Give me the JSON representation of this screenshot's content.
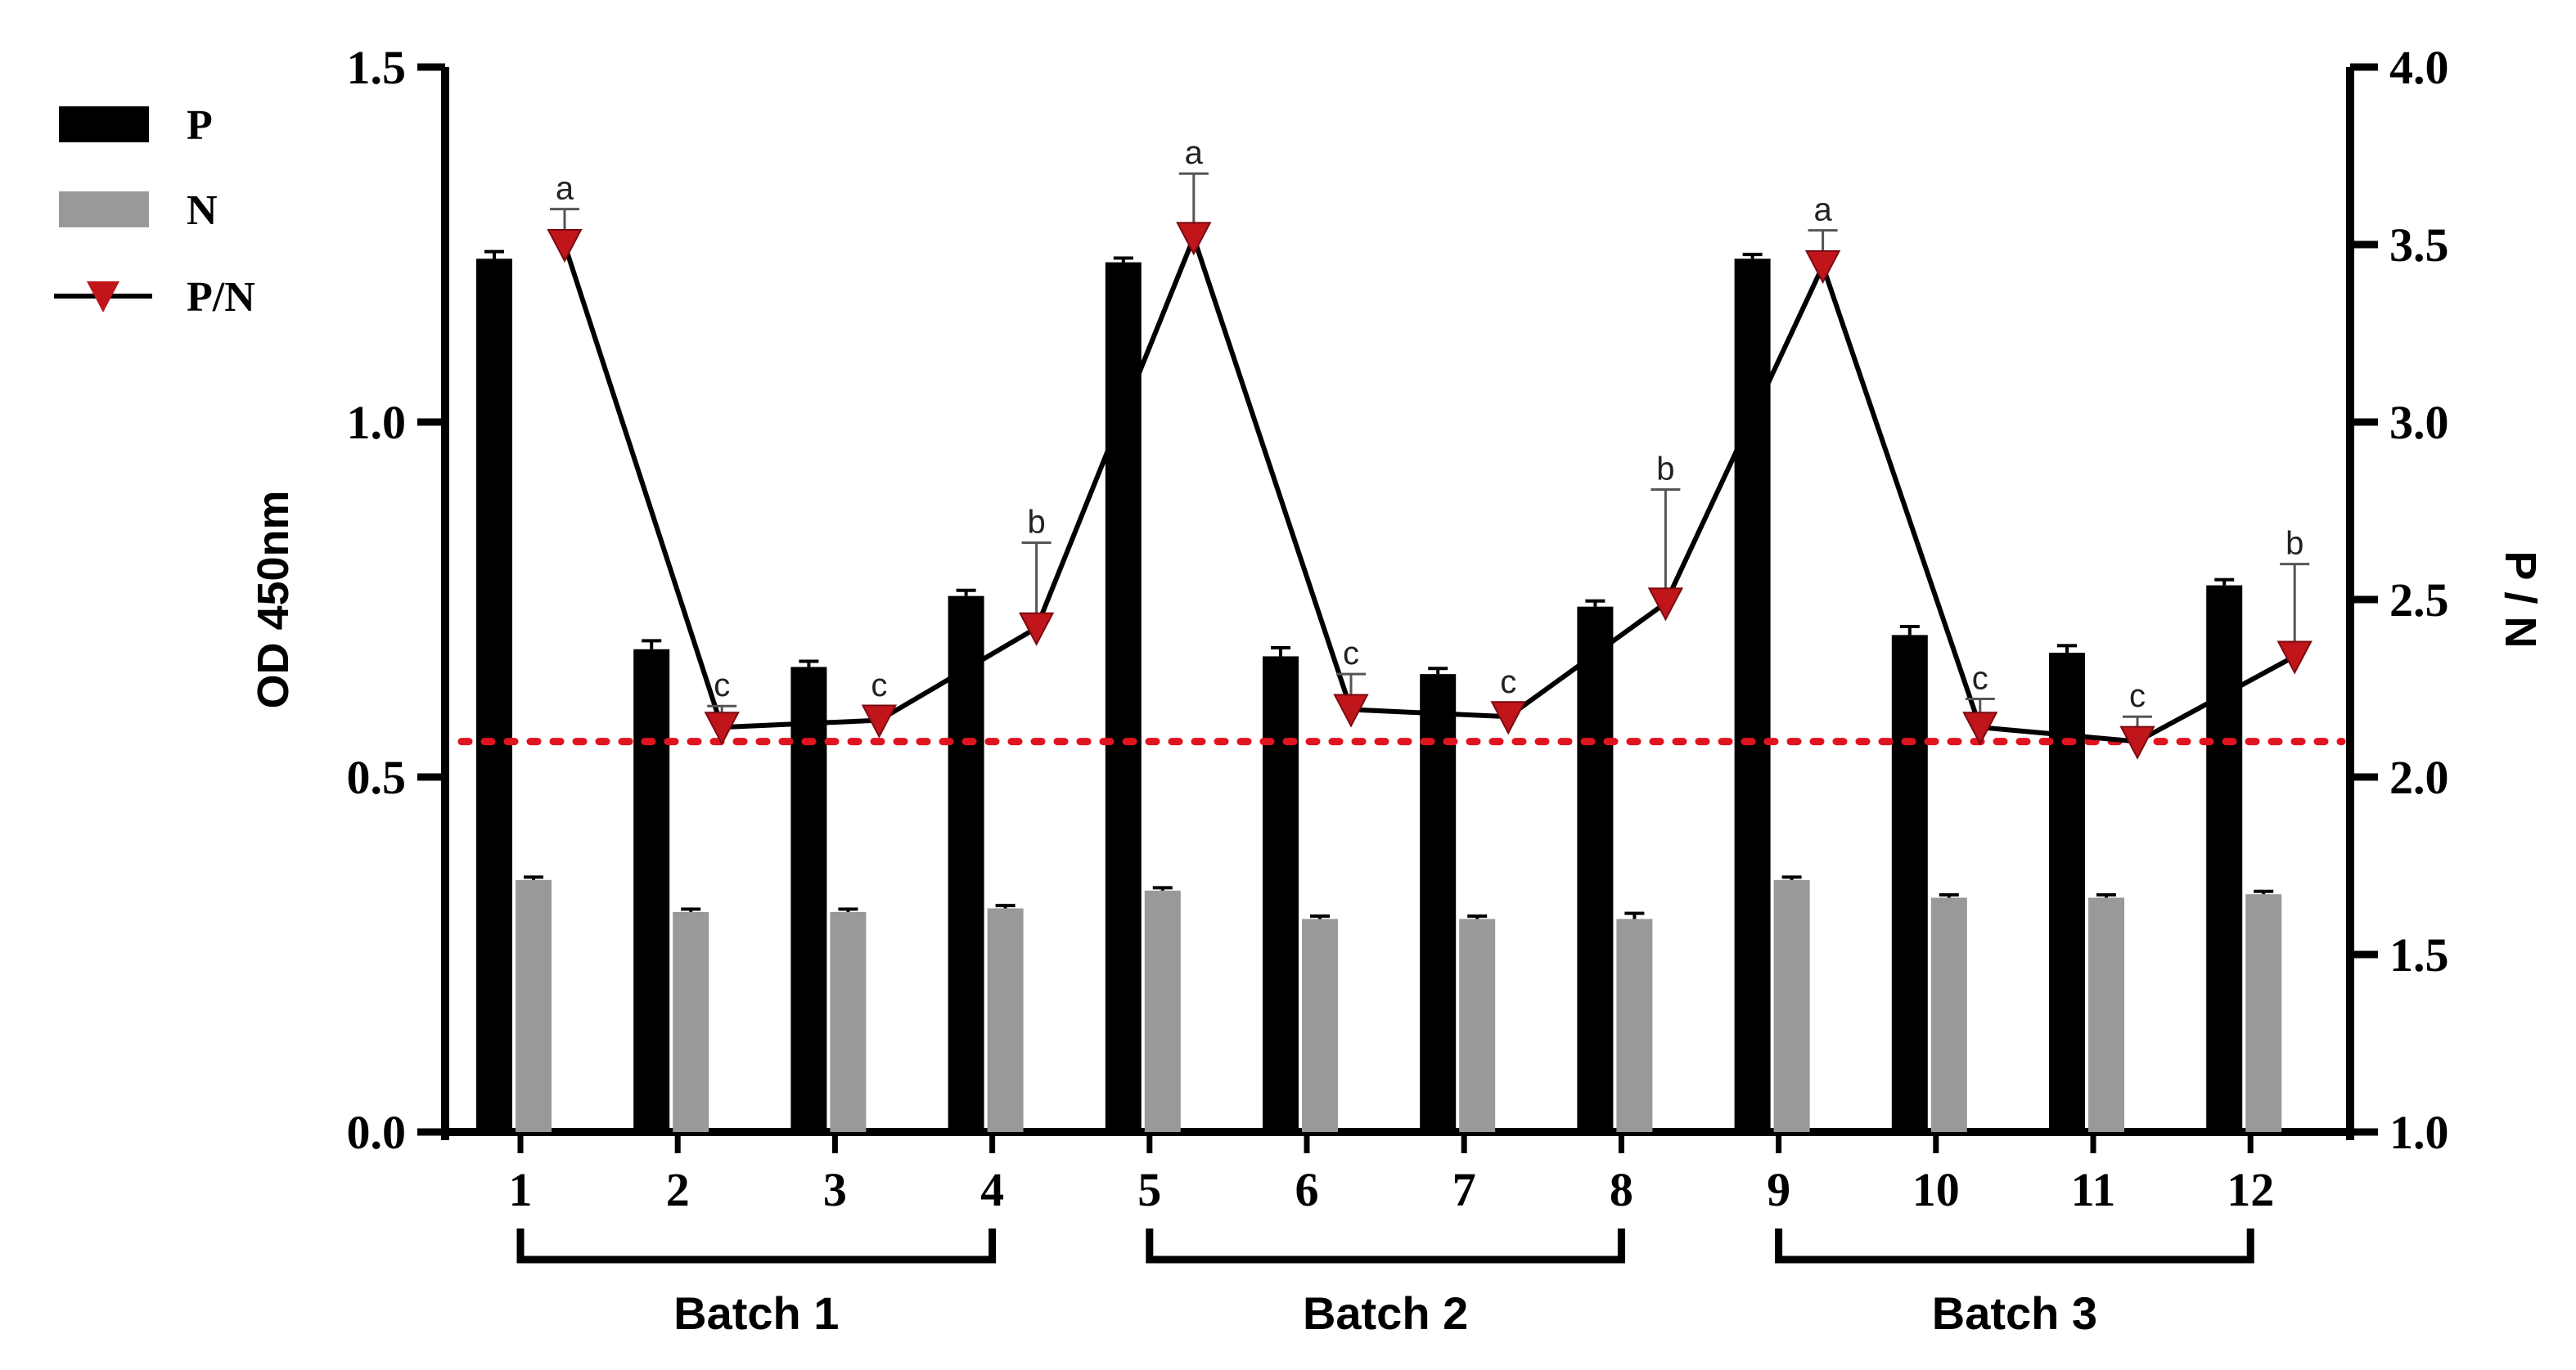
{
  "chart_data": {
    "type": "bar",
    "categories": [
      "1",
      "2",
      "3",
      "4",
      "5",
      "6",
      "7",
      "8",
      "9",
      "10",
      "11",
      "12"
    ],
    "series": [
      {
        "name": "P",
        "axis": "left",
        "kind": "bar",
        "color": "#000000",
        "values": [
          1.23,
          0.68,
          0.655,
          0.755,
          1.225,
          0.67,
          0.645,
          0.74,
          1.23,
          0.7,
          0.675,
          0.77
        ],
        "errors": [
          0.01,
          0.012,
          0.008,
          0.008,
          0.006,
          0.012,
          0.008,
          0.008,
          0.006,
          0.012,
          0.01,
          0.008
        ]
      },
      {
        "name": "N",
        "axis": "left",
        "kind": "bar",
        "color": "#999999",
        "values": [
          0.355,
          0.31,
          0.31,
          0.315,
          0.34,
          0.3,
          0.3,
          0.3,
          0.355,
          0.33,
          0.33,
          0.335
        ],
        "errors": [
          0.004,
          0.004,
          0.004,
          0.004,
          0.004,
          0.004,
          0.004,
          0.008,
          0.004,
          0.004,
          0.004,
          0.004
        ]
      },
      {
        "name": "P/N",
        "axis": "right",
        "kind": "line",
        "color": "#c0151b",
        "values": [
          3.5,
          2.14,
          2.16,
          2.42,
          3.52,
          2.19,
          2.17,
          2.49,
          3.44,
          2.14,
          2.1,
          2.34
        ],
        "errors": [
          0.1,
          0.06,
          0.04,
          0.24,
          0.18,
          0.1,
          0.04,
          0.32,
          0.1,
          0.08,
          0.07,
          0.26
        ],
        "letters": [
          "a",
          "c",
          "c",
          "b",
          "a",
          "c",
          "c",
          "b",
          "a",
          "c",
          "c",
          "b"
        ]
      }
    ],
    "reference_line": {
      "value": 2.1,
      "axis": "right",
      "style": "dotted",
      "color": "#e0141e"
    },
    "ylabel": "OD 450nm",
    "y2label": "P / N",
    "ylim": [
      0,
      1.5
    ],
    "y2lim": [
      1.0,
      4.0
    ],
    "yticks": [
      "0.0",
      "0.5",
      "1.0",
      "1.5"
    ],
    "y2ticks": [
      "1.0",
      "1.5",
      "2.0",
      "2.5",
      "3.0",
      "3.5",
      "4.0"
    ],
    "groups": [
      {
        "label": "Batch 1",
        "from": "1",
        "to": "4"
      },
      {
        "label": "Batch 2",
        "from": "5",
        "to": "8"
      },
      {
        "label": "Batch 3",
        "from": "9",
        "to": "12"
      }
    ],
    "legend": {
      "position": "top-left",
      "entries": [
        "P",
        "N",
        "P/N"
      ]
    },
    "grid": false
  }
}
